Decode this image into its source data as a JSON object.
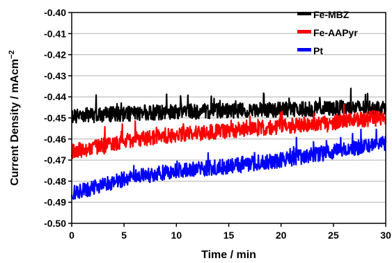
{
  "chart_data": {
    "type": "line",
    "xlabel": "Time / min",
    "ylabel": "Current Density / mAcm",
    "ylabel_sup": "−2",
    "xlim": [
      0,
      30
    ],
    "ylim": [
      -0.5,
      -0.4
    ],
    "x_ticks": [
      "0",
      "5",
      "10",
      "15",
      "20",
      "25",
      "30"
    ],
    "y_ticks": [
      "-0.40",
      "-0.41",
      "-0.42",
      "-0.43",
      "-0.44",
      "-0.45",
      "-0.46",
      "-0.47",
      "-0.48",
      "-0.49",
      "-0.50"
    ],
    "grid": {
      "horizontal": true,
      "vertical": false
    },
    "legend_position": "top-right",
    "series": [
      {
        "name": "Fe-MBZ",
        "color": "#000000",
        "x": [
          0,
          5,
          10,
          15,
          20,
          25,
          30
        ],
        "y": [
          -0.449,
          -0.448,
          -0.447,
          -0.4465,
          -0.446,
          -0.4455,
          -0.445
        ],
        "noise": 0.004
      },
      {
        "name": "Fe-AAPyr",
        "color": "#ff0000",
        "x": [
          0,
          5,
          10,
          15,
          20,
          25,
          30
        ],
        "y": [
          -0.466,
          -0.461,
          -0.458,
          -0.456,
          -0.454,
          -0.452,
          -0.45
        ],
        "noise": 0.004
      },
      {
        "name": "Pt",
        "color": "#0000ff",
        "x": [
          0,
          5,
          10,
          15,
          20,
          25,
          30
        ],
        "y": [
          -0.486,
          -0.479,
          -0.475,
          -0.473,
          -0.47,
          -0.466,
          -0.462
        ],
        "noise": 0.004
      }
    ]
  }
}
